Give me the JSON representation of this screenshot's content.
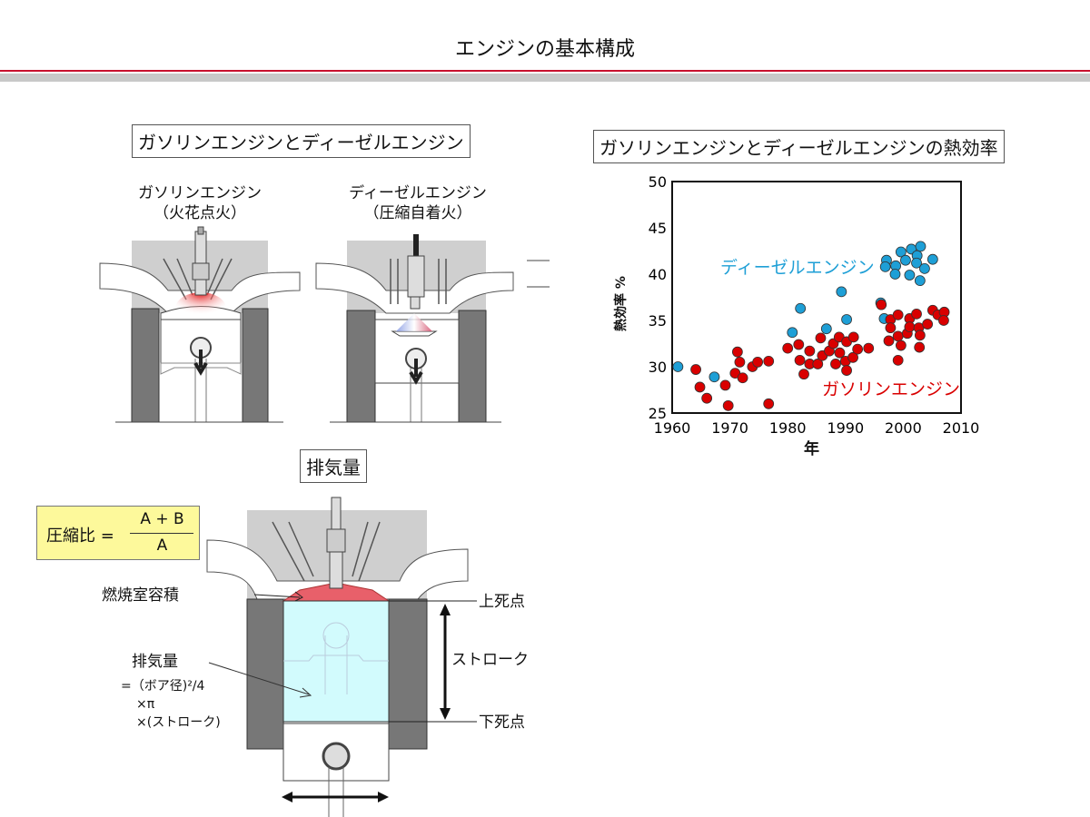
{
  "header": {
    "title": "エンジンの基本構成"
  },
  "engines_panel": {
    "title": "ガソリンエンジンとディーゼルエンジン",
    "gasoline": {
      "name": "ガソリンエンジン",
      "ignition": "（火花点火）"
    },
    "diesel": {
      "name": "ディーゼルエンジン",
      "ignition": "（圧縮自着火）"
    }
  },
  "displacement_panel": {
    "title": "排気量",
    "formula": {
      "label": "圧縮比 =",
      "numerator": "A + B",
      "denominator": "A"
    },
    "labels": {
      "combustion_chamber": "燃焼室容積",
      "tdc": "上死点",
      "bdc": "下死点",
      "stroke": "ストローク",
      "displacement": "排気量",
      "formula_line1": "=（ボア径)²/4",
      "formula_line2": "×π",
      "formula_line3": "×(ストローク)"
    }
  },
  "colors": {
    "gasoline": "#d90000",
    "diesel": "#1e9fd6",
    "accent_line": "#c8102e",
    "formula_bg": "#fdf99b",
    "cylinder_volume": "#d2fbfd"
  },
  "chart_data": {
    "type": "scatter",
    "title": "ガソリンエンジンとディーゼルエンジンの熱効率",
    "xlabel": "年",
    "ylabel": "熱効率 %",
    "xlim": [
      1960,
      2010
    ],
    "ylim": [
      25,
      50
    ],
    "xticks": [
      "1960",
      "1970",
      "1980",
      "1990",
      "2000",
      "2010"
    ],
    "yticks": [
      "25",
      "30",
      "35",
      "40",
      "45",
      "50"
    ],
    "grid": false,
    "series": [
      {
        "name": "ディーゼルエンジン",
        "color": "#1e9fd6",
        "points": [
          [
            1961,
            30.0
          ],
          [
            1967.3,
            28.9
          ],
          [
            1980.8,
            33.7
          ],
          [
            1982.2,
            36.3
          ],
          [
            1986.7,
            34.1
          ],
          [
            1989.3,
            38.1
          ],
          [
            1990.2,
            35.1
          ],
          [
            1996.1,
            36.9
          ],
          [
            1996.7,
            35.2
          ],
          [
            1997.1,
            41.5
          ],
          [
            1996.9,
            40.8
          ],
          [
            1998.7,
            40.9
          ],
          [
            1998.6,
            40.0
          ],
          [
            1999.6,
            42.4
          ],
          [
            2000.4,
            41.5
          ],
          [
            2001.1,
            39.9
          ],
          [
            2001.4,
            42.7
          ],
          [
            2002.4,
            42.0
          ],
          [
            2002.3,
            41.2
          ],
          [
            2003.0,
            43.0
          ],
          [
            2002.9,
            39.3
          ],
          [
            2003.7,
            40.6
          ],
          [
            2005.1,
            41.6
          ]
        ]
      },
      {
        "name": "ガソリンエンジン",
        "color": "#d90000",
        "points": [
          [
            1964.1,
            29.7
          ],
          [
            1964.8,
            27.8
          ],
          [
            1966.0,
            26.6
          ],
          [
            1969.2,
            28.0
          ],
          [
            1969.7,
            25.8
          ],
          [
            1970.9,
            29.3
          ],
          [
            1971.3,
            31.6
          ],
          [
            1971.7,
            30.5
          ],
          [
            1972.2,
            28.8
          ],
          [
            1973.9,
            30.0
          ],
          [
            1974.8,
            30.5
          ],
          [
            1976.7,
            30.6
          ],
          [
            1976.7,
            26.0
          ],
          [
            1980.0,
            32.0
          ],
          [
            1981.9,
            32.4
          ],
          [
            1982.1,
            30.7
          ],
          [
            1982.8,
            29.2
          ],
          [
            1983.8,
            31.7
          ],
          [
            1983.8,
            30.3
          ],
          [
            1985.2,
            30.3
          ],
          [
            1985.7,
            33.1
          ],
          [
            1986.0,
            31.2
          ],
          [
            1987.2,
            31.7
          ],
          [
            1987.9,
            32.5
          ],
          [
            1988.3,
            30.3
          ],
          [
            1988.9,
            33.2
          ],
          [
            1989.0,
            31.5
          ],
          [
            1990.0,
            30.6
          ],
          [
            1990.2,
            29.6
          ],
          [
            1990.2,
            32.7
          ],
          [
            1991.4,
            33.2
          ],
          [
            1991.3,
            31.0
          ],
          [
            1992.1,
            31.9
          ],
          [
            1994.0,
            32.0
          ],
          [
            1996.2,
            36.7
          ],
          [
            1997.5,
            32.8
          ],
          [
            1997.8,
            35.1
          ],
          [
            1997.8,
            34.2
          ],
          [
            1999.1,
            35.6
          ],
          [
            1999.1,
            33.3
          ],
          [
            1999.1,
            30.7
          ],
          [
            1999.6,
            32.3
          ],
          [
            2000.7,
            33.6
          ],
          [
            2001.1,
            35.2
          ],
          [
            2001.1,
            34.3
          ],
          [
            2002.3,
            35.7
          ],
          [
            2002.7,
            34.2
          ],
          [
            2002.9,
            33.4
          ],
          [
            2002.8,
            32.1
          ],
          [
            2004.2,
            34.6
          ],
          [
            2005.1,
            36.1
          ],
          [
            2006.0,
            35.6
          ],
          [
            2007.1,
            35.9
          ],
          [
            2007.0,
            35.0
          ]
        ]
      }
    ]
  }
}
